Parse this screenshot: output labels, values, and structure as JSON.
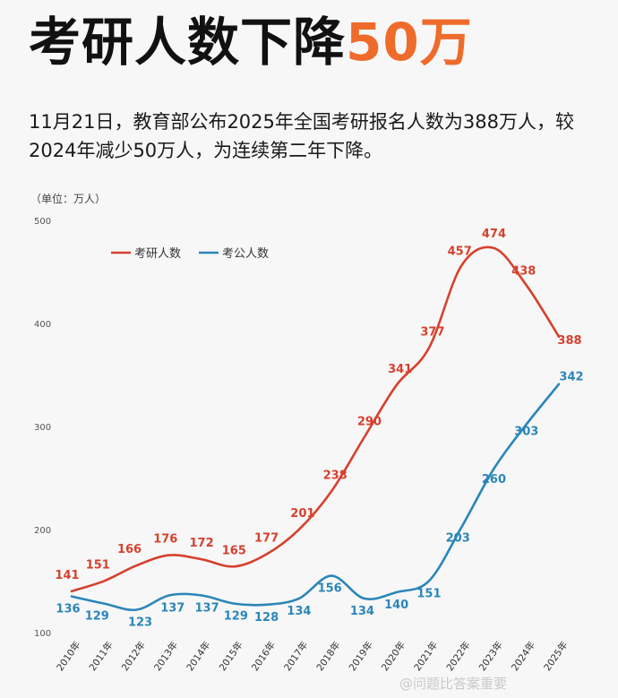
{
  "header": {
    "title_main": "考研人数下降",
    "title_highlight": "50万",
    "description": "11月21日，教育部公布2025年全国考研报名人数为388万人，较2024年减少50万人，为连续第二年下降。"
  },
  "unit_label": "（单位：万人）",
  "watermark": "@问题比答案重要",
  "colors": {
    "highlight": "#ef6b2b",
    "kaoyan": "#d6412e",
    "kaogong": "#2b86b8"
  },
  "chart_data": {
    "type": "line",
    "categories": [
      "2010年",
      "2011年",
      "2012年",
      "2013年",
      "2014年",
      "2015年",
      "2016年",
      "2017年",
      "2018年",
      "2019年",
      "2020年",
      "2021年",
      "2022年",
      "2023年",
      "2024年",
      "2025年"
    ],
    "series": [
      {
        "name": "考研人数",
        "color": "#d6412e",
        "values": [
          141,
          151,
          166,
          176,
          172,
          165,
          177,
          201,
          238,
          290,
          341,
          377,
          457,
          474,
          438,
          388
        ]
      },
      {
        "name": "考公人数",
        "color": "#2b86b8",
        "values": [
          136,
          129,
          123,
          137,
          137,
          129,
          128,
          134,
          156,
          134,
          140,
          151,
          203,
          260,
          303,
          342
        ]
      }
    ],
    "yticks": [
      100,
      200,
      300,
      400,
      500
    ],
    "ylim": [
      100,
      500
    ],
    "grid": false,
    "legend_position": "top-left"
  }
}
